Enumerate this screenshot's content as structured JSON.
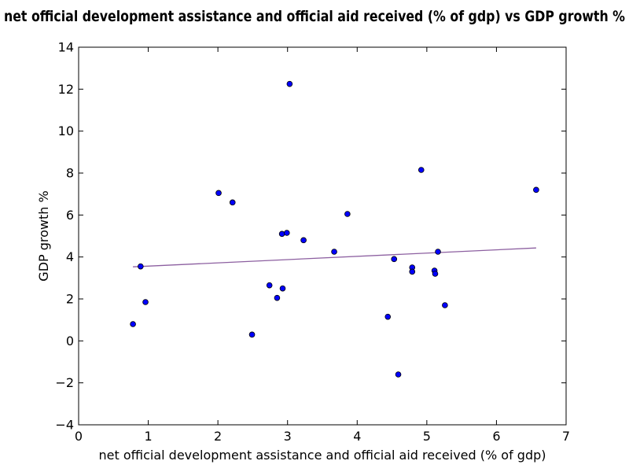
{
  "chart_data": {
    "type": "scatter",
    "title": "net official development assistance and official aid received (% of gdp) vs GDP growth %",
    "xlabel": "net official development assistance and official aid received (% of gdp)",
    "ylabel": "GDP growth %",
    "xlim": [
      0,
      7
    ],
    "ylim": [
      -4,
      14
    ],
    "xticks": [
      "0",
      "1",
      "2",
      "3",
      "4",
      "5",
      "6",
      "7"
    ],
    "yticks": [
      "−4",
      "−2",
      "0",
      "2",
      "4",
      "6",
      "8",
      "10",
      "12",
      "14"
    ],
    "grid": false,
    "point_color": "#0000ff",
    "trend_color": "#8c5fa0",
    "points": [
      {
        "x": 0.78,
        "y": 0.8
      },
      {
        "x": 0.89,
        "y": 3.55
      },
      {
        "x": 0.96,
        "y": 1.85
      },
      {
        "x": 2.01,
        "y": 7.05
      },
      {
        "x": 2.21,
        "y": 6.6
      },
      {
        "x": 2.49,
        "y": 0.3
      },
      {
        "x": 2.74,
        "y": 2.65
      },
      {
        "x": 2.85,
        "y": 2.05
      },
      {
        "x": 2.92,
        "y": 5.1
      },
      {
        "x": 2.93,
        "y": 2.5
      },
      {
        "x": 2.99,
        "y": 5.15
      },
      {
        "x": 3.03,
        "y": 12.25
      },
      {
        "x": 3.23,
        "y": 4.8
      },
      {
        "x": 3.67,
        "y": 4.25
      },
      {
        "x": 3.86,
        "y": 6.05
      },
      {
        "x": 4.44,
        "y": 1.15
      },
      {
        "x": 4.53,
        "y": 3.9
      },
      {
        "x": 4.59,
        "y": -1.6
      },
      {
        "x": 4.79,
        "y": 3.5
      },
      {
        "x": 4.79,
        "y": 3.3
      },
      {
        "x": 4.92,
        "y": 8.15
      },
      {
        "x": 5.11,
        "y": 3.35
      },
      {
        "x": 5.12,
        "y": 3.2
      },
      {
        "x": 5.16,
        "y": 4.25
      },
      {
        "x": 5.26,
        "y": 1.7
      },
      {
        "x": 6.57,
        "y": 7.2
      }
    ],
    "trendline": {
      "x": [
        0.78,
        6.57
      ],
      "y": [
        3.53,
        4.43
      ]
    }
  }
}
